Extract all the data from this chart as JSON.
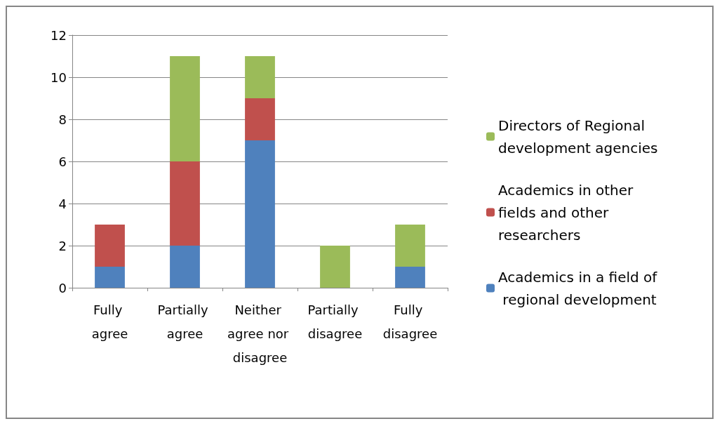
{
  "chart_data": {
    "type": "bar",
    "stacked": true,
    "categories": [
      "Fully agree",
      "Partially agree",
      "Neither agree nor disagree",
      "Partially disagree",
      "Fully disagree"
    ],
    "series": [
      {
        "name": "Academics in a field of regional development",
        "color": "#4f81bd",
        "values": [
          1,
          2,
          7,
          0,
          1
        ]
      },
      {
        "name": "Academics in other fields and other researchers",
        "color": "#c0504d",
        "values": [
          2,
          4,
          2,
          0,
          0
        ]
      },
      {
        "name": "Directors of Regional development agencies",
        "color": "#9bbb59",
        "values": [
          0,
          5,
          2,
          2,
          2
        ]
      }
    ],
    "ylim": [
      0,
      12
    ],
    "yticks": [
      0,
      2,
      4,
      6,
      8,
      10,
      12
    ],
    "grid": "y",
    "legend": "right"
  }
}
